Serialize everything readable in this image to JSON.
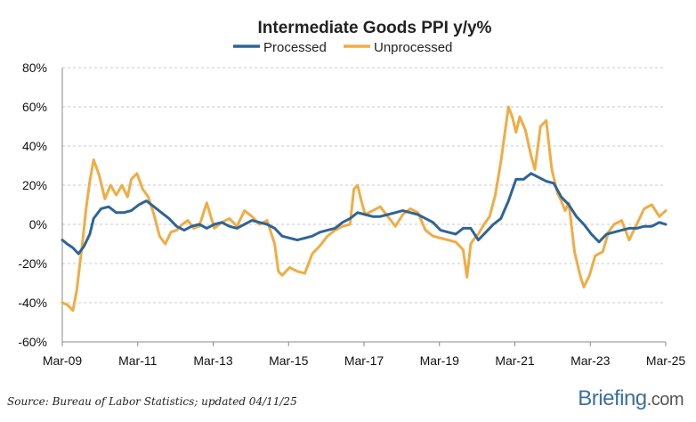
{
  "chart_data": {
    "type": "line",
    "title": "Intermediate Goods PPI y/y%",
    "xlabel": "",
    "ylabel": "",
    "ylim": [
      -60,
      80
    ],
    "yticks": [
      -60,
      -40,
      -20,
      0,
      20,
      40,
      60,
      80
    ],
    "ytick_labels": [
      "-60%",
      "-40%",
      "-20%",
      "0%",
      "20%",
      "40%",
      "60%",
      "80%"
    ],
    "xlim": [
      2009.17,
      2025.17
    ],
    "xticks": [
      2009.17,
      2011.17,
      2013.17,
      2015.17,
      2017.17,
      2019.17,
      2021.17,
      2023.17,
      2025.17
    ],
    "xtick_labels": [
      "Mar-09",
      "Mar-11",
      "Mar-13",
      "Mar-15",
      "Mar-17",
      "Mar-19",
      "Mar-21",
      "Mar-23",
      "Mar-25"
    ],
    "grid": true,
    "legend_position": "top-center",
    "series": [
      {
        "name": "Processed",
        "color": "#2e6496",
        "x": [
          2009.17,
          2009.3,
          2009.45,
          2009.6,
          2009.75,
          2009.9,
          2010.0,
          2010.2,
          2010.4,
          2010.6,
          2010.8,
          2011.0,
          2011.2,
          2011.4,
          2011.6,
          2011.8,
          2012.0,
          2012.2,
          2012.4,
          2012.6,
          2012.8,
          2013.0,
          2013.2,
          2013.4,
          2013.6,
          2013.8,
          2014.0,
          2014.2,
          2014.4,
          2014.6,
          2014.8,
          2015.0,
          2015.2,
          2015.4,
          2015.6,
          2015.8,
          2016.0,
          2016.2,
          2016.4,
          2016.6,
          2016.8,
          2017.0,
          2017.2,
          2017.4,
          2017.6,
          2017.8,
          2018.0,
          2018.2,
          2018.4,
          2018.6,
          2018.8,
          2019.0,
          2019.2,
          2019.4,
          2019.6,
          2019.8,
          2020.0,
          2020.2,
          2020.4,
          2020.6,
          2020.8,
          2021.0,
          2021.2,
          2021.4,
          2021.6,
          2021.8,
          2022.0,
          2022.2,
          2022.4,
          2022.6,
          2022.8,
          2023.0,
          2023.2,
          2023.4,
          2023.6,
          2023.8,
          2024.0,
          2024.2,
          2024.4,
          2024.6,
          2024.8,
          2025.0,
          2025.17
        ],
        "values": [
          -8,
          -10,
          -12,
          -15,
          -11,
          -5,
          3,
          8,
          9,
          6,
          6,
          7,
          10,
          12,
          9,
          6,
          3,
          -1,
          -3,
          -1,
          0,
          -2,
          0,
          1,
          -1,
          -2,
          0,
          2,
          1,
          0,
          -2,
          -6,
          -7,
          -8,
          -7,
          -6,
          -4,
          -3,
          -2,
          1,
          3,
          6,
          5,
          4,
          4,
          5,
          6,
          7,
          6,
          5,
          3,
          1,
          -3,
          -4,
          -5,
          -2,
          -2,
          -8,
          -4,
          0,
          3,
          12,
          23,
          23,
          26,
          24,
          22,
          21,
          14,
          10,
          4,
          0,
          -5,
          -9,
          -5,
          -4,
          -3,
          -2,
          -2,
          -1,
          -1,
          1,
          0
        ]
      },
      {
        "name": "Unprocessed",
        "color": "#f0ac44",
        "x": [
          2009.17,
          2009.3,
          2009.45,
          2009.55,
          2009.7,
          2009.8,
          2009.9,
          2010.0,
          2010.15,
          2010.3,
          2010.45,
          2010.6,
          2010.75,
          2010.9,
          2011.0,
          2011.15,
          2011.3,
          2011.45,
          2011.6,
          2011.75,
          2011.9,
          2012.05,
          2012.2,
          2012.35,
          2012.5,
          2012.65,
          2012.8,
          2013.0,
          2013.2,
          2013.4,
          2013.6,
          2013.8,
          2014.0,
          2014.2,
          2014.4,
          2014.6,
          2014.8,
          2014.9,
          2015.0,
          2015.2,
          2015.4,
          2015.6,
          2015.8,
          2016.0,
          2016.2,
          2016.4,
          2016.6,
          2016.8,
          2016.9,
          2017.0,
          2017.1,
          2017.2,
          2017.4,
          2017.6,
          2017.8,
          2018.0,
          2018.2,
          2018.4,
          2018.6,
          2018.8,
          2019.0,
          2019.2,
          2019.4,
          2019.6,
          2019.8,
          2019.9,
          2020.0,
          2020.1,
          2020.2,
          2020.35,
          2020.5,
          2020.65,
          2020.8,
          2021.0,
          2021.1,
          2021.2,
          2021.3,
          2021.45,
          2021.6,
          2021.7,
          2021.85,
          2022.0,
          2022.15,
          2022.3,
          2022.4,
          2022.5,
          2022.6,
          2022.75,
          2022.9,
          2023.0,
          2023.15,
          2023.3,
          2023.5,
          2023.65,
          2023.8,
          2024.0,
          2024.2,
          2024.4,
          2024.6,
          2024.8,
          2024.9,
          2025.0,
          2025.17
        ],
        "values": [
          -40,
          -41,
          -44,
          -34,
          -10,
          8,
          22,
          33,
          25,
          13,
          20,
          15,
          20,
          14,
          23,
          26,
          18,
          14,
          5,
          -6,
          -10,
          -4,
          -3,
          0,
          2,
          -2,
          -1,
          11,
          -2,
          1,
          3,
          -1,
          7,
          4,
          0,
          2,
          -10,
          -24,
          -26,
          -22,
          -24,
          -25,
          -15,
          -11,
          -6,
          -3,
          -1,
          0,
          18,
          20,
          12,
          5,
          7,
          9,
          4,
          -1,
          5,
          8,
          6,
          -3,
          -6,
          -7,
          -8,
          -9,
          -13,
          -27,
          -10,
          -7,
          -5,
          0,
          4,
          15,
          32,
          60,
          55,
          47,
          55,
          48,
          35,
          28,
          50,
          53,
          28,
          16,
          12,
          7,
          11,
          -14,
          -26,
          -32,
          -26,
          -16,
          -14,
          -4,
          0,
          2,
          -8,
          0,
          8,
          10,
          7,
          4,
          7
        ]
      }
    ]
  },
  "source_text": "Source: Bureau of Labor Statistics; updated 04/11/25",
  "brand": {
    "name": "Briefing",
    "suffix": ".com"
  }
}
